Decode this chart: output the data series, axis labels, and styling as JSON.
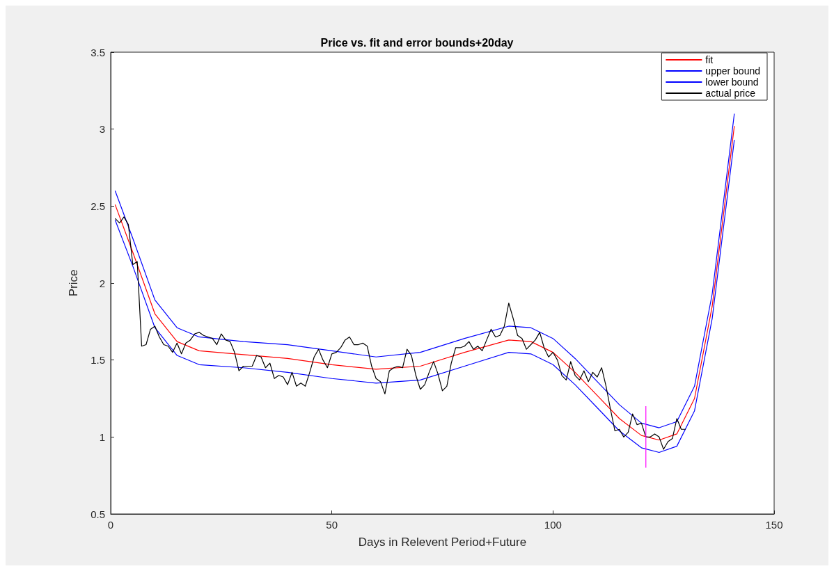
{
  "chart_data": {
    "type": "line",
    "title": "Price vs. fit and error bounds+20day",
    "xlabel": "Days in Relevent Period+Future",
    "ylabel": "Price",
    "xlim": [
      0,
      150
    ],
    "xticks": [
      0,
      50,
      100,
      150
    ],
    "ylim": [
      0.5,
      3.5
    ],
    "yticks": [
      0.5,
      1,
      1.5,
      2,
      2.5,
      3,
      3.5
    ],
    "legend": "top right",
    "series": [
      {
        "name": "fit",
        "color": "#ff0000",
        "x": [
          1,
          5,
          10,
          15,
          20,
          30,
          40,
          50,
          60,
          70,
          80,
          90,
          95,
          100,
          105,
          110,
          115,
          120,
          124,
          128,
          132,
          136,
          141
        ],
        "values": [
          2.51,
          2.2,
          1.8,
          1.62,
          1.56,
          1.535,
          1.51,
          1.47,
          1.44,
          1.46,
          1.55,
          1.63,
          1.62,
          1.55,
          1.42,
          1.27,
          1.12,
          1.01,
          0.98,
          1.02,
          1.25,
          1.85,
          3.02
        ]
      },
      {
        "name": "upper bound",
        "color": "#0000ff",
        "x": [
          1,
          5,
          10,
          15,
          20,
          30,
          40,
          50,
          60,
          70,
          80,
          90,
          95,
          100,
          105,
          110,
          115,
          120,
          124,
          128,
          132,
          136,
          141
        ],
        "values": [
          2.6,
          2.29,
          1.89,
          1.71,
          1.65,
          1.62,
          1.6,
          1.56,
          1.52,
          1.55,
          1.64,
          1.72,
          1.71,
          1.64,
          1.51,
          1.36,
          1.21,
          1.09,
          1.06,
          1.1,
          1.33,
          1.93,
          3.1
        ]
      },
      {
        "name": "lower bound",
        "color": "#0000ff",
        "x": [
          1,
          5,
          10,
          15,
          20,
          30,
          40,
          50,
          60,
          70,
          80,
          90,
          95,
          100,
          105,
          110,
          115,
          120,
          124,
          128,
          132,
          136,
          141
        ],
        "values": [
          2.41,
          2.11,
          1.71,
          1.53,
          1.47,
          1.45,
          1.42,
          1.38,
          1.35,
          1.37,
          1.46,
          1.55,
          1.54,
          1.47,
          1.34,
          1.19,
          1.04,
          0.93,
          0.9,
          0.94,
          1.17,
          1.77,
          2.93
        ]
      },
      {
        "name": "actual price",
        "color": "#000000",
        "x": [
          1,
          2,
          3,
          4,
          5,
          6,
          7,
          8,
          9,
          10,
          11,
          12,
          13,
          14,
          15,
          16,
          17,
          18,
          19,
          20,
          21,
          22,
          23,
          24,
          25,
          26,
          27,
          28,
          29,
          30,
          31,
          32,
          33,
          34,
          35,
          36,
          37,
          38,
          39,
          40,
          41,
          42,
          43,
          44,
          45,
          46,
          47,
          48,
          49,
          50,
          51,
          52,
          53,
          54,
          55,
          56,
          57,
          58,
          59,
          60,
          61,
          62,
          63,
          64,
          65,
          66,
          67,
          68,
          69,
          70,
          71,
          72,
          73,
          74,
          75,
          76,
          77,
          78,
          79,
          80,
          81,
          82,
          83,
          84,
          85,
          86,
          87,
          88,
          89,
          90,
          91,
          92,
          93,
          94,
          95,
          96,
          97,
          98,
          99,
          100,
          101,
          102,
          103,
          104,
          105,
          106,
          107,
          108,
          109,
          110,
          111,
          112,
          113,
          114,
          115,
          116,
          117,
          118,
          119,
          120,
          121,
          122,
          123,
          124,
          125,
          126,
          127,
          128,
          129,
          130
        ],
        "values": [
          2.42,
          2.39,
          2.43,
          2.38,
          2.12,
          2.14,
          1.59,
          1.6,
          1.7,
          1.72,
          1.65,
          1.6,
          1.59,
          1.55,
          1.61,
          1.54,
          1.61,
          1.63,
          1.67,
          1.68,
          1.66,
          1.65,
          1.64,
          1.6,
          1.67,
          1.63,
          1.62,
          1.55,
          1.43,
          1.46,
          1.46,
          1.46,
          1.53,
          1.52,
          1.45,
          1.48,
          1.38,
          1.4,
          1.39,
          1.34,
          1.42,
          1.33,
          1.35,
          1.33,
          1.42,
          1.52,
          1.57,
          1.5,
          1.45,
          1.54,
          1.55,
          1.58,
          1.63,
          1.65,
          1.6,
          1.6,
          1.61,
          1.59,
          1.46,
          1.38,
          1.36,
          1.28,
          1.43,
          1.45,
          1.46,
          1.45,
          1.57,
          1.53,
          1.4,
          1.31,
          1.34,
          1.42,
          1.49,
          1.41,
          1.3,
          1.33,
          1.48,
          1.58,
          1.58,
          1.59,
          1.62,
          1.57,
          1.59,
          1.56,
          1.63,
          1.7,
          1.65,
          1.66,
          1.72,
          1.87,
          1.77,
          1.66,
          1.64,
          1.57,
          1.6,
          1.63,
          1.68,
          1.58,
          1.52,
          1.55,
          1.5,
          1.4,
          1.37,
          1.49,
          1.4,
          1.37,
          1.43,
          1.36,
          1.42,
          1.39,
          1.45,
          1.33,
          1.18,
          1.04,
          1.05,
          1.0,
          1.03,
          1.15,
          1.08,
          1.09,
          1.0,
          1.0,
          1.02,
          1.0,
          0.92,
          0.97,
          0.99,
          1.12,
          1.05,
          1.05
        ]
      },
      {
        "color": "#ff00ff",
        "x": [
          121,
          121
        ],
        "values": [
          0.8,
          1.2
        ]
      }
    ]
  }
}
